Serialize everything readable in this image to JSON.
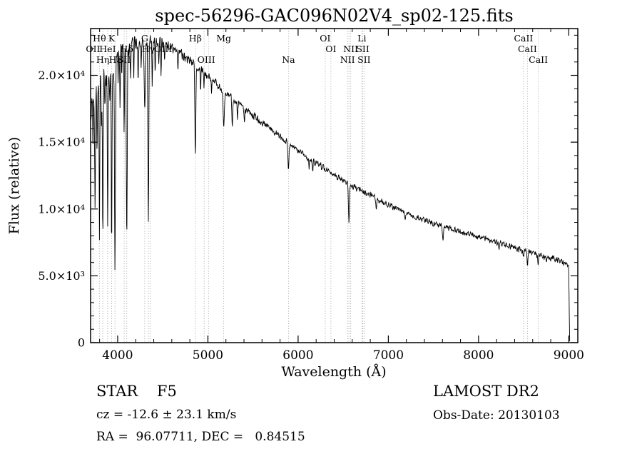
{
  "title": "spec-56296-GAC096N02V4_sp02-125.fits",
  "footer": {
    "object_type": "STAR    F5",
    "survey": "LAMOST DR2",
    "cz": "cz = -12.6 ± 23.1 km/s",
    "obs_date": "Obs-Date: 20130103",
    "coords": "RA =  96.07711, DEC =   0.84515"
  },
  "chart_data": {
    "type": "line",
    "title": "spec-56296-GAC096N02V4_sp02-125.fits",
    "xlabel": "Wavelength (Å)",
    "ylabel": "Flux (relative)",
    "xlim": [
      3700,
      9100
    ],
    "ylim": [
      0,
      23500
    ],
    "x_major_ticks": [
      4000,
      5000,
      6000,
      7000,
      8000,
      9000
    ],
    "x_minor_step": 200,
    "y_major_ticks": [
      {
        "value": 0,
        "label": "0"
      },
      {
        "value": 5000,
        "label": "5.0×10³"
      },
      {
        "value": 10000,
        "label": "1.0×10⁴"
      },
      {
        "value": 15000,
        "label": "1.5×10⁴"
      },
      {
        "value": 20000,
        "label": "2.0×10⁴"
      }
    ],
    "y_minor_step": 1000,
    "line_color": "#000000",
    "marker_line_color": "#999999",
    "grid": false,
    "spectral_lines": [
      {
        "wl": 3727,
        "label": "OII",
        "row": 2
      },
      {
        "wl": 3798,
        "label": "Hθ",
        "row": 1
      },
      {
        "wl": 3835,
        "label": "Hη",
        "row": 3
      },
      {
        "wl": 3889,
        "label": "HeI",
        "row": 2
      },
      {
        "wl": 3933,
        "label": "K",
        "row": 1
      },
      {
        "wl": 3970,
        "label": "Hε",
        "row": 3
      },
      {
        "wl": 4072,
        "label": "SII",
        "row": 3
      },
      {
        "wl": 4101,
        "label": "Hδ",
        "row": 2
      },
      {
        "wl": 4300,
        "label": "G",
        "row": 1
      },
      {
        "wl": 4340,
        "label": "Hγ",
        "row": 2
      },
      {
        "wl": 4363,
        "label": "OIII",
        "row": 2,
        "dx": 18
      },
      {
        "wl": 4861,
        "label": "Hβ",
        "row": 1
      },
      {
        "wl": 4959,
        "label": "OIII",
        "row": 3,
        "dx": 3
      },
      {
        "wl": 5007,
        "label": "",
        "row": 3
      },
      {
        "wl": 5175,
        "label": "Mg",
        "row": 1
      },
      {
        "wl": 5893,
        "label": "Na",
        "row": 3
      },
      {
        "wl": 6300,
        "label": "OI",
        "row": 1
      },
      {
        "wl": 6364,
        "label": "OI",
        "row": 2
      },
      {
        "wl": 6548,
        "label": "NII",
        "row": 3
      },
      {
        "wl": 6563,
        "label": "",
        "row": 1
      },
      {
        "wl": 6583,
        "label": "NII",
        "row": 2
      },
      {
        "wl": 6707,
        "label": "Li",
        "row": 1
      },
      {
        "wl": 6717,
        "label": "SII",
        "row": 2
      },
      {
        "wl": 6731,
        "label": "SII",
        "row": 3
      },
      {
        "wl": 8498,
        "label": "CaII",
        "row": 1
      },
      {
        "wl": 8542,
        "label": "CaII",
        "row": 2
      },
      {
        "wl": 8662,
        "label": "CaII",
        "row": 3
      }
    ],
    "continuum": [
      [
        3700,
        17000
      ],
      [
        3750,
        18100
      ],
      [
        3800,
        19400
      ],
      [
        3850,
        20000
      ],
      [
        3900,
        20400
      ],
      [
        3950,
        20900
      ],
      [
        4000,
        21400
      ],
      [
        4050,
        21800
      ],
      [
        4100,
        22050
      ],
      [
        4150,
        22200
      ],
      [
        4200,
        22300
      ],
      [
        4300,
        22450
      ],
      [
        4400,
        22500
      ],
      [
        4500,
        22350
      ],
      [
        4600,
        22050
      ],
      [
        4700,
        21600
      ],
      [
        4800,
        21150
      ],
      [
        4900,
        20500
      ],
      [
        5000,
        19950
      ],
      [
        5100,
        19350
      ],
      [
        5200,
        18750
      ],
      [
        5300,
        18150
      ],
      [
        5400,
        17600
      ],
      [
        5500,
        17050
      ],
      [
        5600,
        16500
      ],
      [
        5700,
        15950
      ],
      [
        5800,
        15400
      ],
      [
        5900,
        14900
      ],
      [
        6000,
        14400
      ],
      [
        6100,
        13900
      ],
      [
        6200,
        13450
      ],
      [
        6300,
        13000
      ],
      [
        6400,
        12550
      ],
      [
        6500,
        12150
      ],
      [
        6600,
        11750
      ],
      [
        6700,
        11400
      ],
      [
        6800,
        11050
      ],
      [
        6900,
        10650
      ],
      [
        7000,
        10300
      ],
      [
        7100,
        10000
      ],
      [
        7200,
        9700
      ],
      [
        7300,
        9450
      ],
      [
        7400,
        9200
      ],
      [
        7500,
        8950
      ],
      [
        7600,
        8700
      ],
      [
        7700,
        8500
      ],
      [
        7800,
        8300
      ],
      [
        7900,
        8100
      ],
      [
        8000,
        7900
      ],
      [
        8100,
        7700
      ],
      [
        8200,
        7500
      ],
      [
        8300,
        7300
      ],
      [
        8400,
        7100
      ],
      [
        8500,
        6900
      ],
      [
        8600,
        6700
      ],
      [
        8700,
        6500
      ],
      [
        8800,
        6300
      ],
      [
        8900,
        6100
      ],
      [
        9000,
        5950
      ],
      [
        9010,
        5900
      ]
    ],
    "absorption_features": [
      [
        3727,
        2500,
        4
      ],
      [
        3750,
        7000,
        4
      ],
      [
        3771,
        5000,
        3
      ],
      [
        3798,
        11000,
        4
      ],
      [
        3820,
        3000,
        3
      ],
      [
        3835,
        12500,
        4
      ],
      [
        3860,
        3000,
        3
      ],
      [
        3889,
        12000,
        4
      ],
      [
        3912,
        2500,
        3
      ],
      [
        3933,
        14000,
        4
      ],
      [
        3970,
        15000,
        5
      ],
      [
        4005,
        2500,
        3
      ],
      [
        4026,
        3500,
        3
      ],
      [
        4045,
        2500,
        3
      ],
      [
        4072,
        6000,
        3
      ],
      [
        4101,
        14000,
        5
      ],
      [
        4144,
        2800,
        3
      ],
      [
        4178,
        2200,
        3
      ],
      [
        4227,
        3200,
        3
      ],
      [
        4260,
        2200,
        3
      ],
      [
        4300,
        5000,
        6
      ],
      [
        4340,
        13500,
        5
      ],
      [
        4383,
        3500,
        3
      ],
      [
        4415,
        2200,
        3
      ],
      [
        4455,
        1800,
        3
      ],
      [
        4481,
        2400,
        3
      ],
      [
        4520,
        1500,
        3
      ],
      [
        4668,
        1500,
        3
      ],
      [
        4861,
        7000,
        5
      ],
      [
        4920,
        1800,
        3
      ],
      [
        4957,
        1200,
        3
      ],
      [
        5041,
        1200,
        3
      ],
      [
        5175,
        2800,
        7
      ],
      [
        5270,
        2200,
        5
      ],
      [
        5328,
        1300,
        4
      ],
      [
        5405,
        1100,
        4
      ],
      [
        5893,
        2000,
        5
      ],
      [
        6122,
        800,
        4
      ],
      [
        6162,
        700,
        4
      ],
      [
        6563,
        2900,
        5
      ],
      [
        6867,
        900,
        4
      ],
      [
        7186,
        500,
        5
      ],
      [
        7605,
        900,
        6
      ],
      [
        8227,
        400,
        4
      ],
      [
        8498,
        600,
        4
      ],
      [
        8542,
        900,
        4
      ],
      [
        8662,
        800,
        4
      ],
      [
        8750,
        500,
        4
      ]
    ],
    "noise_profile": [
      [
        3700,
        1800
      ],
      [
        3850,
        1500
      ],
      [
        4000,
        1150
      ],
      [
        4200,
        800
      ],
      [
        4500,
        550
      ],
      [
        4800,
        430
      ],
      [
        5200,
        350
      ],
      [
        5800,
        300
      ],
      [
        6500,
        270
      ],
      [
        7200,
        240
      ],
      [
        8000,
        260
      ],
      [
        8700,
        300
      ],
      [
        9100,
        340
      ]
    ],
    "noise_seed": 20130103,
    "sample_step": 3.5,
    "data_start": 3700,
    "data_end": 9010,
    "cutoff_start": 8998
  }
}
